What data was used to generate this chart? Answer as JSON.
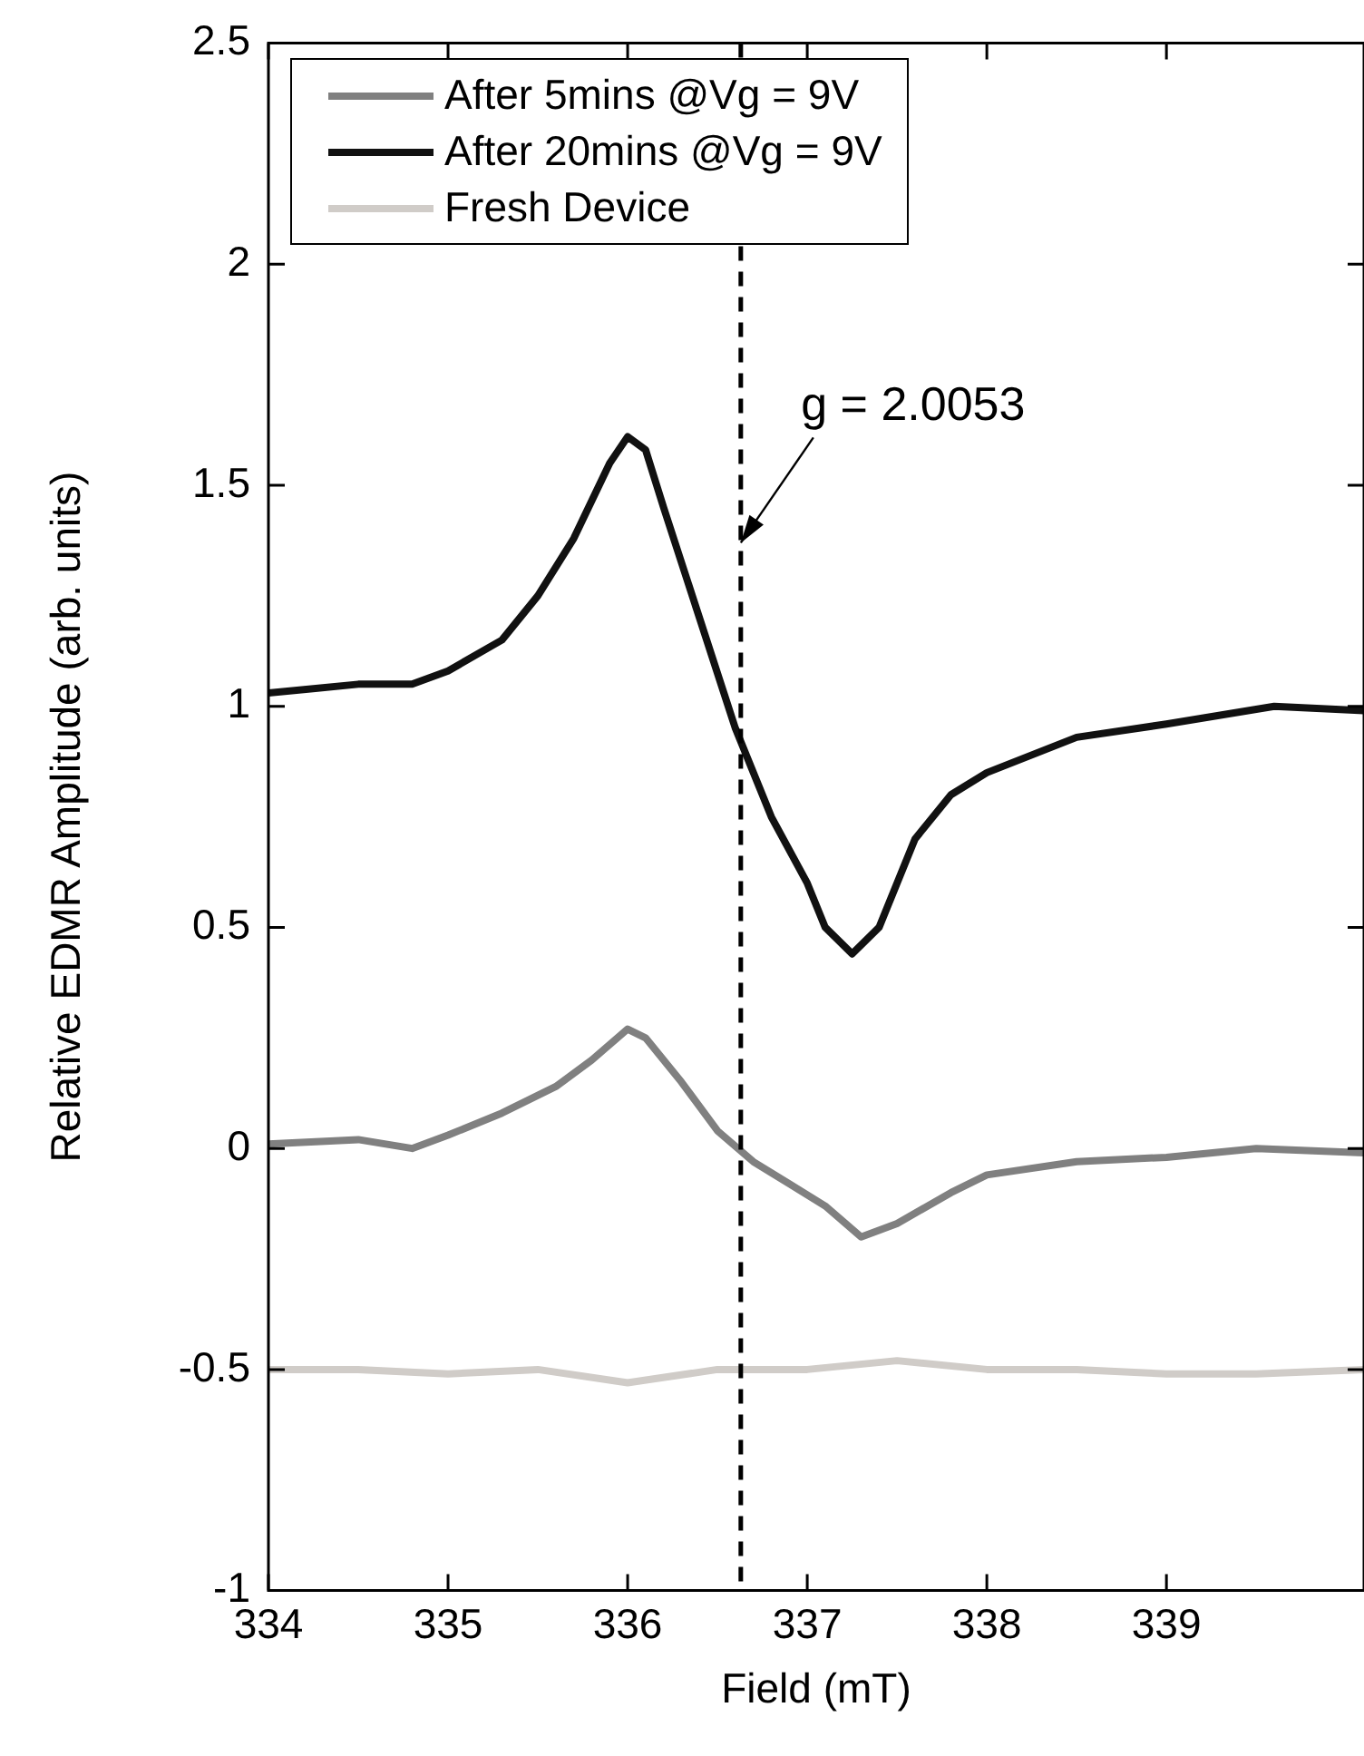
{
  "chart_data": {
    "type": "line",
    "xlabel": "Field (mT)",
    "ylabel": "Relative EDMR Amplitude (arb. units)",
    "xlim": [
      334,
      340.1
    ],
    "xticks": [
      334,
      335,
      336,
      337,
      338,
      339
    ],
    "ylim": [
      -1,
      2.5
    ],
    "yticks": [
      -1,
      -0.5,
      0,
      0.5,
      1,
      1.5,
      2,
      2.5
    ],
    "grid": false,
    "legend": "top left",
    "marker": "none",
    "line_style": "solid",
    "ref_lines": [
      {
        "axis": "x",
        "value": 336.63,
        "color": "#000000",
        "line_style": "dashed"
      }
    ],
    "annotations": [
      {
        "text": "g = 2.0053",
        "x": 336.63,
        "y": 1.37
      }
    ],
    "series": [
      {
        "name": "After 5mins @Vg = 9V",
        "color": "#808080",
        "x": [
          334,
          334.5,
          334.8,
          335,
          335.3,
          335.6,
          335.8,
          336,
          336.1,
          336.3,
          336.5,
          336.7,
          336.9,
          337.1,
          337.3,
          337.5,
          337.8,
          338,
          338.5,
          339,
          339.5,
          340.1
        ],
        "values": [
          0.01,
          0.02,
          0,
          0.03,
          0.08,
          0.14,
          0.2,
          0.27,
          0.25,
          0.15,
          0.04,
          -0.03,
          -0.08,
          -0.13,
          -0.2,
          -0.17,
          -0.1,
          -0.06,
          -0.03,
          -0.02,
          0,
          -0.01
        ]
      },
      {
        "name": "After 20mins @Vg = 9V",
        "color": "#111111",
        "x": [
          334,
          334.5,
          334.8,
          335,
          335.3,
          335.5,
          335.7,
          335.9,
          336,
          336.1,
          336.2,
          336.4,
          336.6,
          336.8,
          337,
          337.1,
          337.25,
          337.4,
          337.6,
          337.8,
          338,
          338.5,
          339,
          339.3,
          339.6,
          340.1
        ],
        "values": [
          1.03,
          1.05,
          1.05,
          1.08,
          1.15,
          1.25,
          1.38,
          1.55,
          1.61,
          1.58,
          1.45,
          1.2,
          0.95,
          0.75,
          0.6,
          0.5,
          0.44,
          0.5,
          0.7,
          0.8,
          0.85,
          0.93,
          0.96,
          0.98,
          1,
          0.99
        ]
      },
      {
        "name": "Fresh Device",
        "color": "#d0ccc8",
        "x": [
          334,
          334.5,
          335,
          335.5,
          336,
          336.5,
          337,
          337.5,
          338,
          338.5,
          339,
          339.5,
          340.1
        ],
        "values": [
          -0.5,
          -0.5,
          -0.51,
          -0.5,
          -0.53,
          -0.5,
          -0.5,
          -0.48,
          -0.5,
          -0.5,
          -0.51,
          -0.51,
          -0.5
        ]
      }
    ]
  }
}
